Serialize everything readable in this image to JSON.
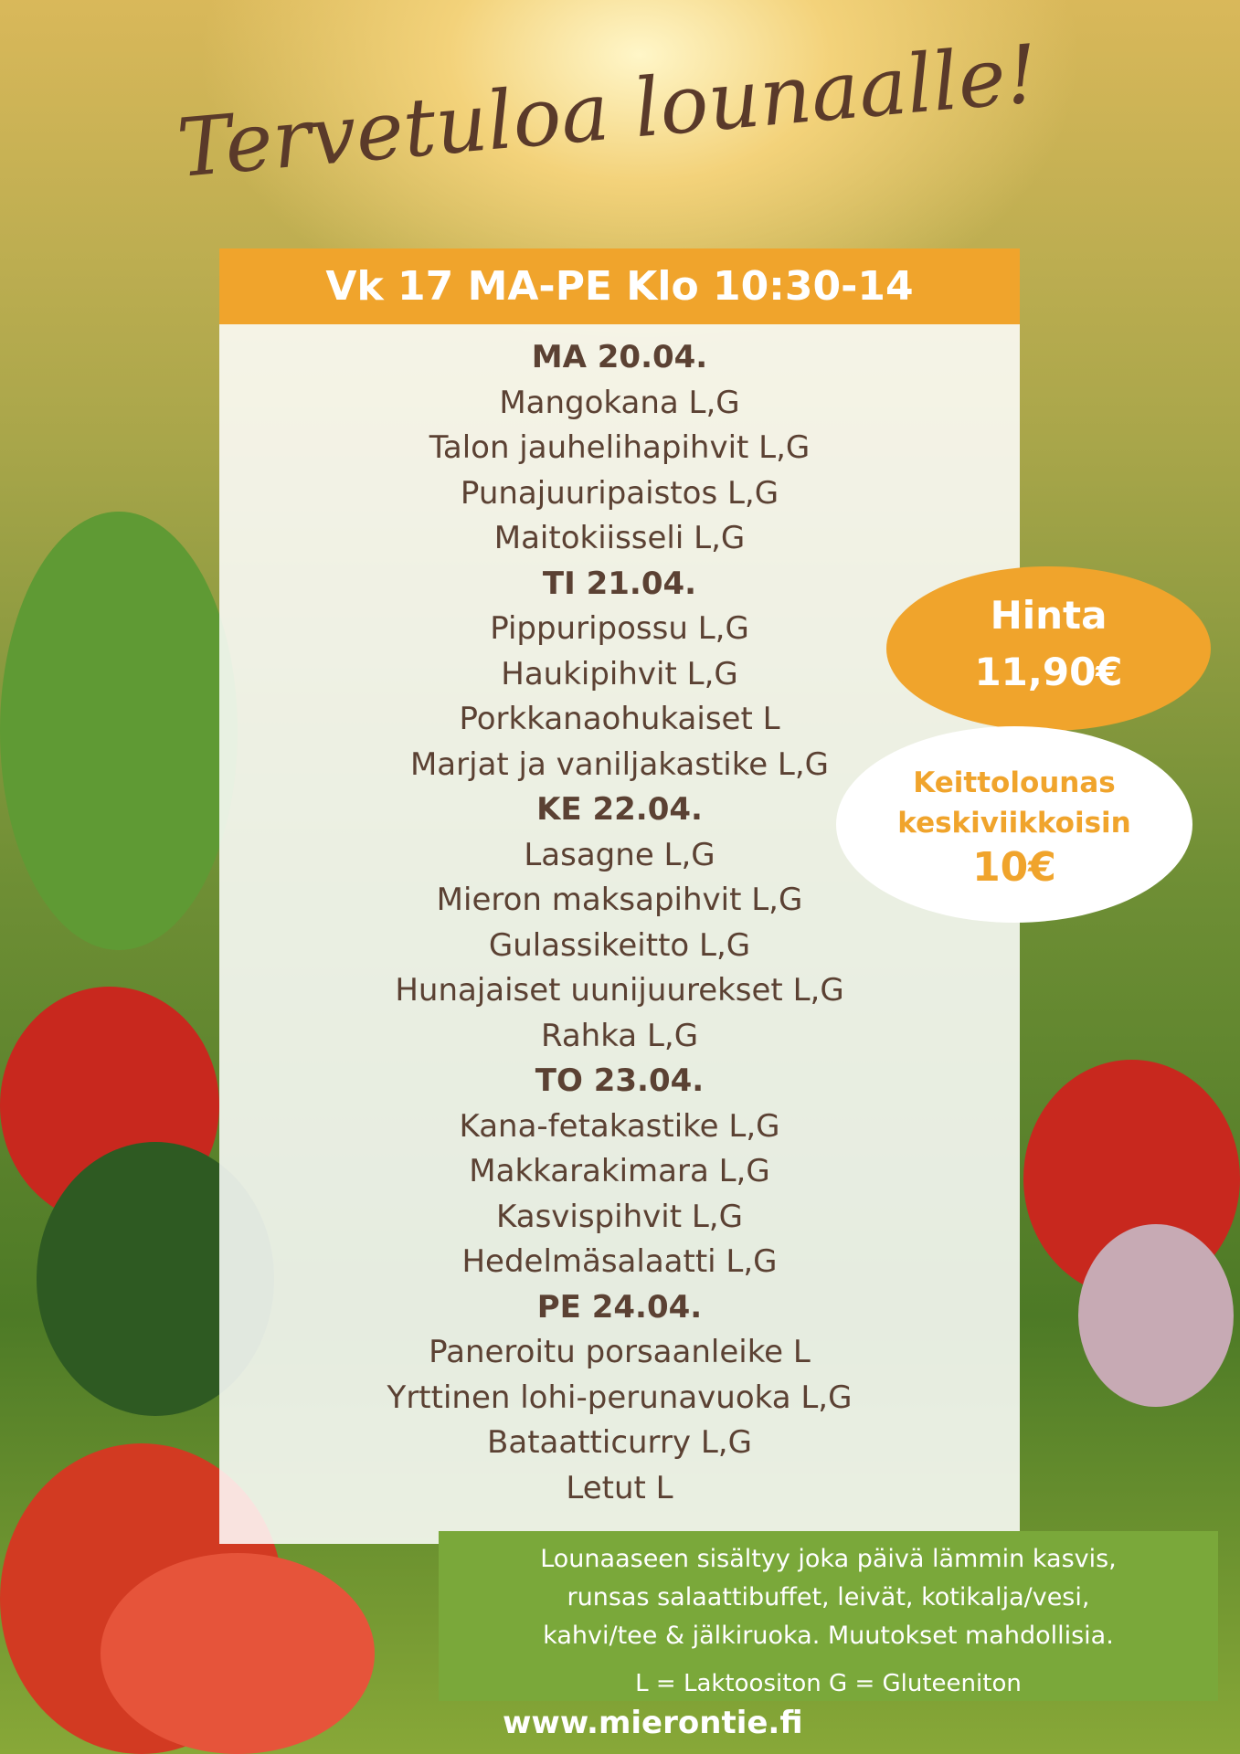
{
  "title": "Tervetuloa lounaalle!",
  "header": "Vk 17 MA-PE Klo 10:30-14",
  "days": [
    {
      "day": "MA 20.04.",
      "items": [
        "Mangokana L,G",
        "Talon jauhelihapihvit L,G",
        "Punajuuripaistos L,G",
        "Maitokiisseli L,G"
      ]
    },
    {
      "day": "TI 21.04.",
      "items": [
        "Pippuripossu L,G",
        "Haukipihvit L,G",
        "Porkkanaohukaiset L",
        "Marjat ja vaniljakastike L,G"
      ]
    },
    {
      "day": "KE 22.04.",
      "items": [
        "Lasagne L,G",
        "Mieron maksapihvit L,G",
        "Gulassikeitto L,G",
        "Hunajaiset uunijuurekset L,G",
        "Rahka L,G"
      ]
    },
    {
      "day": "TO 23.04.",
      "items": [
        "Kana-fetakastike L,G",
        "Makkarakimara L,G",
        "Kasvispihvit L,G",
        "Hedelmäsalaatti L,G"
      ]
    },
    {
      "day": "PE 24.04.",
      "items": [
        "Paneroitu porsaanleike L",
        "Yrttinen lohi-perunavuoka L,G",
        "Bataatticurry L,G",
        "Letut L"
      ]
    }
  ],
  "price": {
    "label": "Hinta",
    "value": "11,90€"
  },
  "soup": {
    "line1": "Keittolounas",
    "line2": "keskiviikkoisin",
    "price": "10€"
  },
  "note": {
    "lines": [
      "Lounaaseen sisältyy joka päivä lämmin kasvis,",
      "runsas salaattibuffet, leivät, kotikalja/vesi,",
      "kahvi/tee  & jälkiruoka. Muutokset mahdollisia."
    ],
    "legend": "L = Laktoositon G = Gluteeniton"
  },
  "website": "www.mierontie.fi",
  "colors": {
    "orange": "#f0a42c",
    "green": "#7aa83a",
    "brown": "#5b4133"
  }
}
